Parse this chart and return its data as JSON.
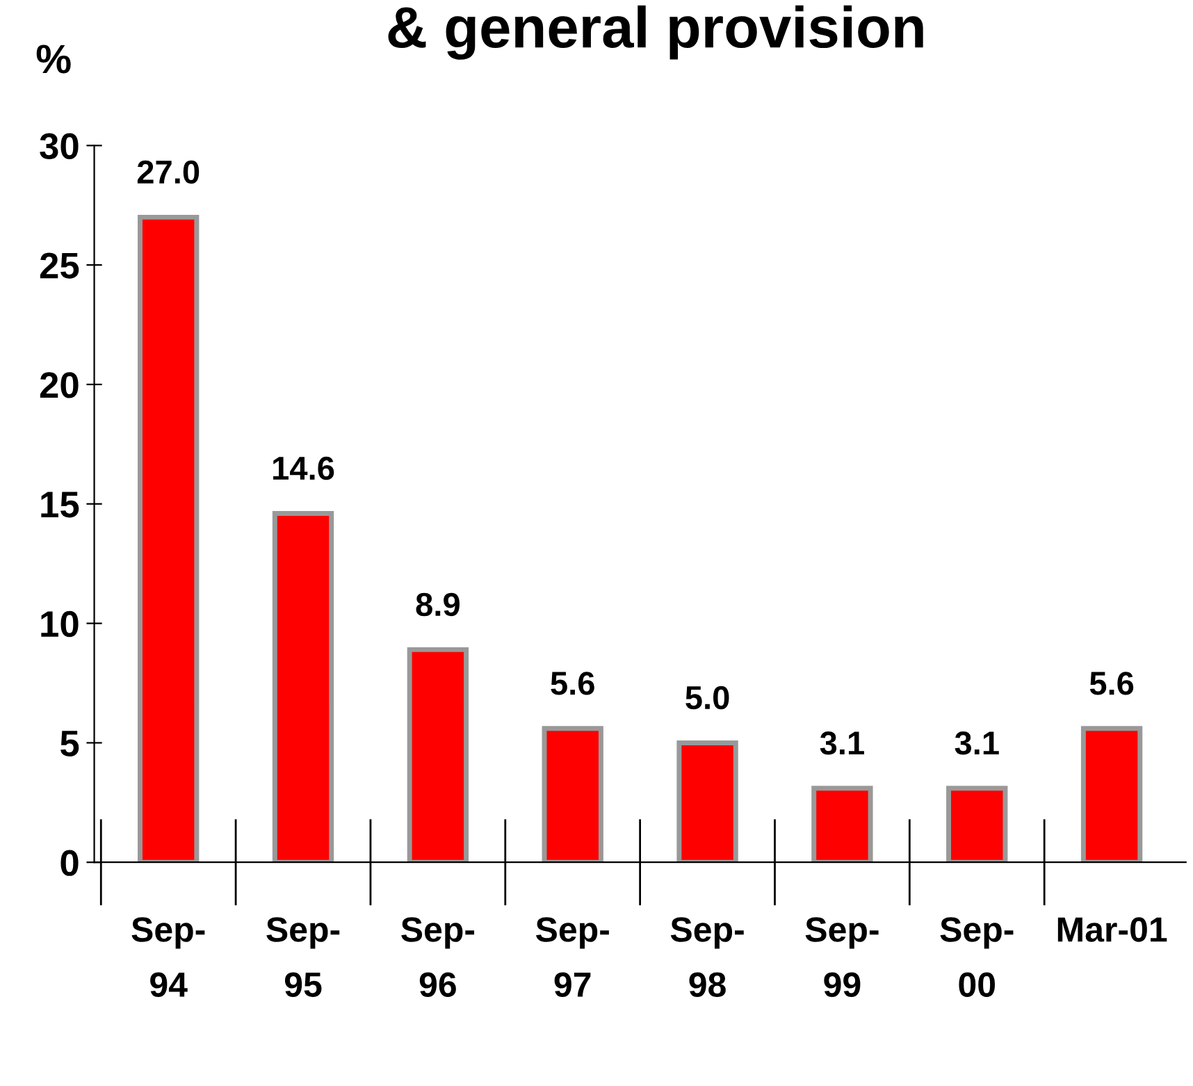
{
  "chart_data": {
    "type": "bar",
    "title": "& general provision",
    "ylabel": "%",
    "categories": [
      "Sep-\n94",
      "Sep-\n95",
      "Sep-\n96",
      "Sep-\n97",
      "Sep-\n98",
      "Sep-\n99",
      "Sep-\n00",
      "Mar-01"
    ],
    "values": [
      27.0,
      14.6,
      8.9,
      5.6,
      5.0,
      3.1,
      3.1,
      5.6
    ],
    "value_labels": [
      "27.0",
      "14.6",
      "8.9",
      "5.6",
      "5.0",
      "3.1",
      "3.1",
      "5.6"
    ],
    "color": "#ff0000",
    "ylim": [
      0,
      30
    ],
    "yticks": [
      0,
      5,
      10,
      15,
      20,
      25,
      30
    ],
    "grid": false,
    "legend": false
  }
}
